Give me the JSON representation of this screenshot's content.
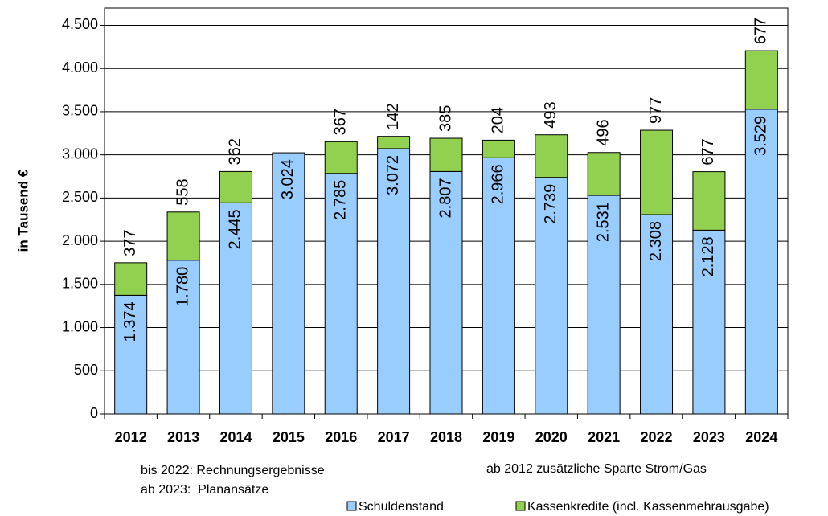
{
  "chart_data": {
    "type": "stacked_bar",
    "y_label": "in Tausend €",
    "categories": [
      "2012",
      "2013",
      "2014",
      "2015",
      "2016",
      "2017",
      "2018",
      "2019",
      "2020",
      "2021",
      "2022",
      "2023",
      "2024"
    ],
    "series": [
      {
        "name": "Schuldenstand",
        "color": "#99ccff",
        "values": [
          1374,
          1780,
          2445,
          3024,
          2785,
          3072,
          2807,
          2966,
          2739,
          2531,
          2308,
          2128,
          3529
        ],
        "value_labels": [
          "1.374",
          "1.780",
          "2.445",
          "3.024",
          "2.785",
          "3.072",
          "2.807",
          "2.966",
          "2.739",
          "2.531",
          "2.308",
          "2.128",
          "3.529"
        ]
      },
      {
        "name": "Kassenkredite (incl. Kassenmehrausgabe)",
        "color": "#92d050",
        "values": [
          377,
          558,
          362,
          null,
          367,
          142,
          385,
          204,
          493,
          496,
          977,
          677,
          677
        ]
      }
    ],
    "ylim": [
      0,
      4700
    ],
    "yticks": [
      0,
      500,
      {
        "value": 1000,
        "label": "1.000"
      },
      {
        "value": 1500,
        "label": "1.500"
      },
      {
        "value": 2000,
        "label": "2.000"
      },
      {
        "value": 2500,
        "label": "2.500"
      },
      {
        "value": 3000,
        "label": "3.000"
      },
      {
        "value": 3500,
        "label": "3.500"
      },
      {
        "value": 4000,
        "label": "4.000"
      },
      {
        "value": 4500,
        "label": "4.500"
      }
    ],
    "grid": true,
    "annotations": [
      "bis 2022: Rechnungsergebnisse",
      "ab 2023:  Planansätze",
      "ab 2012 zusätzliche Sparte Strom/Gas"
    ]
  }
}
